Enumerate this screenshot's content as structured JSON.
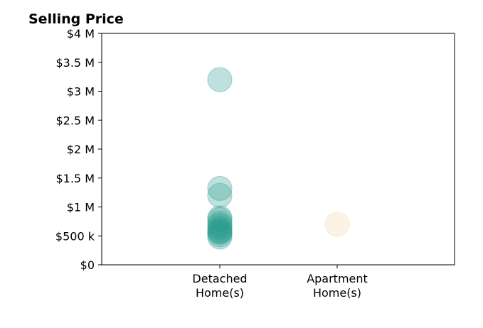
{
  "chart_data": {
    "type": "scatter",
    "title": "Selling Price",
    "categories": [
      "Detached\nHome(s)",
      "Apartment\nHome(s)"
    ],
    "ylim": [
      0,
      4000000
    ],
    "y_ticks": [
      {
        "value": 0,
        "label": "$0"
      },
      {
        "value": 500000,
        "label": "$500 k"
      },
      {
        "value": 1000000,
        "label": "$1 M"
      },
      {
        "value": 1500000,
        "label": "$1.5 M"
      },
      {
        "value": 2000000,
        "label": "$2 M"
      },
      {
        "value": 2500000,
        "label": "$2.5 M"
      },
      {
        "value": 3000000,
        "label": "$3 M"
      },
      {
        "value": 3500000,
        "label": "$3.5 M"
      },
      {
        "value": 4000000,
        "label": "$4 M"
      }
    ],
    "series": [
      {
        "category": "Detached\nHome(s)",
        "color": "#2a9d8f",
        "values": [
          3200000,
          1320000,
          1200000,
          810000,
          780000,
          720000,
          680000,
          640000,
          600000,
          580000,
          560000,
          520000,
          480000
        ]
      },
      {
        "category": "Apartment\nHome(s)",
        "color": "#f1d8a1",
        "values": [
          700000
        ]
      }
    ],
    "grid": false,
    "legend": "none"
  }
}
